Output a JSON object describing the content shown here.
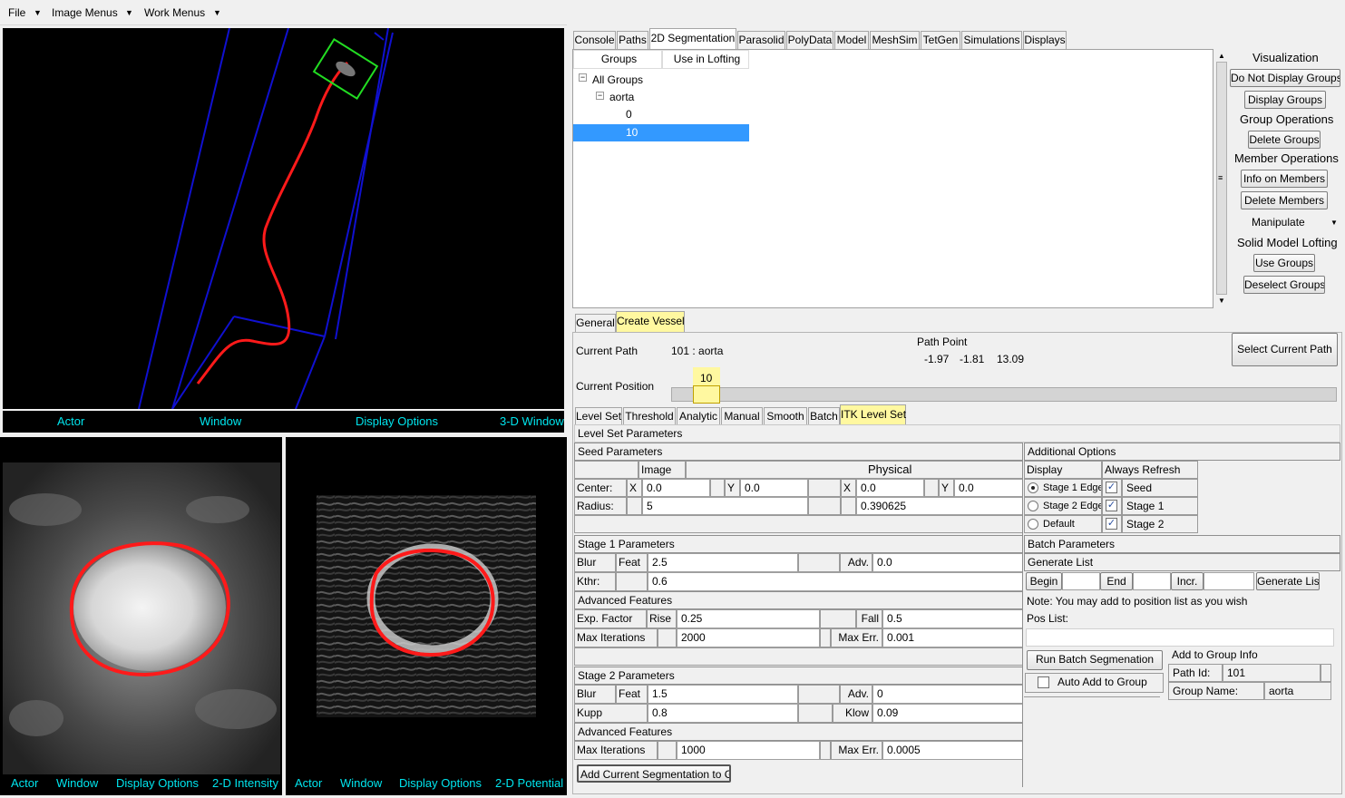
{
  "menubar": {
    "file": "File",
    "image_menus": "Image Menus",
    "work_menus": "Work Menus"
  },
  "view3d": {
    "actor": "Actor",
    "window": "Window",
    "display_options": "Display Options",
    "title": "3-D Window"
  },
  "view_intensity": {
    "actor": "Actor",
    "window": "Window",
    "display_options": "Display Options",
    "title": "2-D Intensity"
  },
  "view_potential": {
    "actor": "Actor",
    "window": "Window",
    "display_options": "Display Options",
    "title": "2-D Potential"
  },
  "main_tabs": [
    "Console",
    "Paths",
    "2D Segmentation",
    "Parasolid",
    "PolyData",
    "Model",
    "MeshSim",
    "TetGen",
    "Simulations",
    "Displays"
  ],
  "groups_tree": {
    "col_groups": "Groups",
    "col_lofting": "Use in Lofting",
    "all_groups": "All Groups",
    "aorta": "aorta",
    "member_0": "0",
    "member_10": "10"
  },
  "visualization_panel": {
    "visualization": "Visualization",
    "do_not_display": "Do Not Display Groups",
    "display_groups": "Display Groups",
    "group_operations": "Group Operations",
    "delete_groups": "Delete Groups",
    "member_operations": "Member Operations",
    "info_members": "Info on Members",
    "delete_members": "Delete Members",
    "manipulate": "Manipulate",
    "solid_lofting": "Solid Model Lofting",
    "use_groups": "Use Groups",
    "deselect_groups": "Deselect Groups"
  },
  "sub_tabs": [
    "General",
    "Create Vessel"
  ],
  "current_path": {
    "label": "Current Path",
    "value": "101 : aorta"
  },
  "path_point": {
    "label": "Path Point",
    "x": "-1.97",
    "y": "-1.81",
    "z": "13.09"
  },
  "select_current_path": "Select Current Path",
  "current_position": {
    "label": "Current Position",
    "value": "10",
    "fraction": 0.024
  },
  "method_tabs": [
    "Level Set",
    "Threshold",
    "Analytic",
    "Manual",
    "Smooth",
    "Batch",
    "ITK Level Set"
  ],
  "level_set": {
    "title": "Level Set Parameters",
    "seed_parameters": "Seed Parameters",
    "image": "Image",
    "physical": "Physical",
    "center": "Center:",
    "x": "X",
    "y": "Y",
    "center_img_x": "0.0",
    "center_img_y": "0.0",
    "center_phys_x": "0.0",
    "center_phys_y": "0.0",
    "radius": "Radius:",
    "radius_img": "5",
    "radius_phys": "0.390625",
    "stage1": "Stage 1 Parameters",
    "blur": "Blur",
    "feat": "Feat",
    "s1_feat": "2.5",
    "adv": "Adv.",
    "s1_adv": "0.0",
    "kthr": "Kthr:",
    "s1_kthr": "0.6",
    "advanced": "Advanced Features",
    "exp_factor": "Exp. Factor",
    "rise": "Rise",
    "s1_rise": "0.25",
    "fall": "Fall",
    "s1_fall": "0.5",
    "max_iter": "Max Iterations",
    "s1_max_iter": "2000",
    "max_err": "Max Err.",
    "s1_max_err": "0.001",
    "stage2": "Stage 2 Parameters",
    "s2_feat": "1.5",
    "s2_adv": "0",
    "kupp": "Kupp",
    "s2_kupp": "0.8",
    "klow": "Klow",
    "s2_klow": "0.09",
    "s2_max_iter": "1000",
    "s2_max_err": "0.0005",
    "add_current": "Add Current Segmentation to Gr"
  },
  "additional": {
    "title": "Additional Options",
    "display": "Display",
    "always_refresh": "Always Refresh",
    "stage1_edge": "Stage 1 Edge",
    "stage2_edge": "Stage 2 Edge",
    "default": "Default",
    "seed": "Seed",
    "stage1": "Stage 1",
    "stage2": "Stage 2",
    "batch_parameters": "Batch Parameters",
    "generate_list": "Generate List",
    "begin": "Begin",
    "end": "End",
    "incr": "Incr.",
    "generate_btn": "Generate Lis",
    "note": "Note: You may add to position list as you wish",
    "pos_list": "Pos List:",
    "run_batch": "Run Batch Segmenation",
    "auto_add": "Auto Add to Group",
    "add_to_group_info": "Add to Group Info",
    "path_id": "Path Id:",
    "path_id_value": "101",
    "group_name": "Group Name:",
    "group_name_value": "aorta"
  },
  "colors": {
    "cyan_label": "#00e5ee",
    "selection": "#3399ff",
    "highlight_tab": "#fff8a0",
    "contour_red": "#ff1a1a",
    "wire_blue": "#1010d0",
    "box_green": "#22dd22"
  }
}
